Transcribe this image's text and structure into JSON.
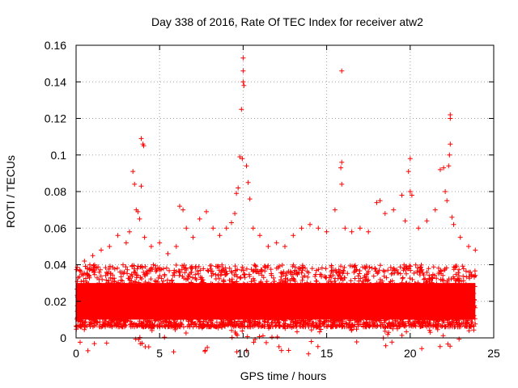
{
  "chart_data": {
    "type": "scatter",
    "title": "Day 338 of 2016, Rate Of TEC Index for receiver atw2",
    "xlabel": "GPS time / hours",
    "ylabel": "ROTI / TECUs",
    "xlim": [
      0,
      25
    ],
    "ylim": [
      0,
      0.16
    ],
    "xticks": [
      0,
      5,
      10,
      15,
      20,
      25
    ],
    "xtick_labels": [
      "0",
      "5",
      "10",
      "15",
      "20",
      "25"
    ],
    "yticks": [
      0,
      0.02,
      0.04,
      0.06,
      0.08,
      0.1,
      0.12,
      0.14,
      0.16
    ],
    "ytick_labels": [
      "0",
      "0.02",
      "0.04",
      "0.06",
      "0.08",
      "0.1",
      "0.12",
      "0.14",
      "0.16"
    ],
    "grid": true,
    "marker": "plus",
    "color": "#ff0000",
    "series": [
      {
        "name": "ROTI",
        "points": [
          [
            0.3,
            0.012
          ],
          [
            0.5,
            0.042
          ],
          [
            1.0,
            0.045
          ],
          [
            1.5,
            0.048
          ],
          [
            2.0,
            0.05
          ],
          [
            2.5,
            0.056
          ],
          [
            3.0,
            0.052
          ],
          [
            3.2,
            0.058
          ],
          [
            3.4,
            0.091
          ],
          [
            3.5,
            0.084
          ],
          [
            3.6,
            0.07
          ],
          [
            3.7,
            0.069
          ],
          [
            3.8,
            0.065
          ],
          [
            3.9,
            0.109
          ],
          [
            4.0,
            0.106
          ],
          [
            4.05,
            0.105
          ],
          [
            3.9,
            0.083
          ],
          [
            4.1,
            0.055
          ],
          [
            4.5,
            0.05
          ],
          [
            5.0,
            0.052
          ],
          [
            5.5,
            0.046
          ],
          [
            6.0,
            0.05
          ],
          [
            6.2,
            0.072
          ],
          [
            6.4,
            0.07
          ],
          [
            6.6,
            0.06
          ],
          [
            7.0,
            0.055
          ],
          [
            7.4,
            0.065
          ],
          [
            7.8,
            0.069
          ],
          [
            8.2,
            0.06
          ],
          [
            8.6,
            0.056
          ],
          [
            9.0,
            0.06
          ],
          [
            9.3,
            0.063
          ],
          [
            9.5,
            0.068
          ],
          [
            9.6,
            0.079
          ],
          [
            9.7,
            0.082
          ],
          [
            9.8,
            0.099
          ],
          [
            9.9,
            0.125
          ],
          [
            10.0,
            0.153
          ],
          [
            10.0,
            0.146
          ],
          [
            10.0,
            0.14
          ],
          [
            10.05,
            0.138
          ],
          [
            9.95,
            0.098
          ],
          [
            10.2,
            0.094
          ],
          [
            10.3,
            0.085
          ],
          [
            10.4,
            0.076
          ],
          [
            10.6,
            0.06
          ],
          [
            11.0,
            0.056
          ],
          [
            11.5,
            0.05
          ],
          [
            12.0,
            0.052
          ],
          [
            12.5,
            0.05
          ],
          [
            13.0,
            0.056
          ],
          [
            13.5,
            0.06
          ],
          [
            14.0,
            0.062
          ],
          [
            14.5,
            0.06
          ],
          [
            15.0,
            0.058
          ],
          [
            15.5,
            0.07
          ],
          [
            15.9,
            0.146
          ],
          [
            15.9,
            0.096
          ],
          [
            15.85,
            0.093
          ],
          [
            15.9,
            0.084
          ],
          [
            16.1,
            0.06
          ],
          [
            16.5,
            0.058
          ],
          [
            17.0,
            0.06
          ],
          [
            17.5,
            0.058
          ],
          [
            18.0,
            0.074
          ],
          [
            18.2,
            0.075
          ],
          [
            18.5,
            0.068
          ],
          [
            19.0,
            0.07
          ],
          [
            19.5,
            0.078
          ],
          [
            19.7,
            0.064
          ],
          [
            20.0,
            0.098
          ],
          [
            19.9,
            0.091
          ],
          [
            20.0,
            0.08
          ],
          [
            20.1,
            0.078
          ],
          [
            20.5,
            0.06
          ],
          [
            21.0,
            0.064
          ],
          [
            21.5,
            0.07
          ],
          [
            21.8,
            0.092
          ],
          [
            22.0,
            0.093
          ],
          [
            22.1,
            0.08
          ],
          [
            22.2,
            0.075
          ],
          [
            22.3,
            0.094
          ],
          [
            22.35,
            0.1
          ],
          [
            22.4,
            0.106
          ],
          [
            22.4,
            0.12
          ],
          [
            22.4,
            0.122
          ],
          [
            22.5,
            0.066
          ],
          [
            22.6,
            0.062
          ],
          [
            23.0,
            0.055
          ],
          [
            23.5,
            0.05
          ],
          [
            23.9,
            0.048
          ]
        ]
      }
    ],
    "dense_band": {
      "note": "Thousands of overlapping points forming a solid red band across the full day",
      "x_range": [
        0,
        23.9
      ],
      "y_low": 0.006,
      "y_typical_high": 0.04,
      "y_peak_high": 0.055
    }
  }
}
